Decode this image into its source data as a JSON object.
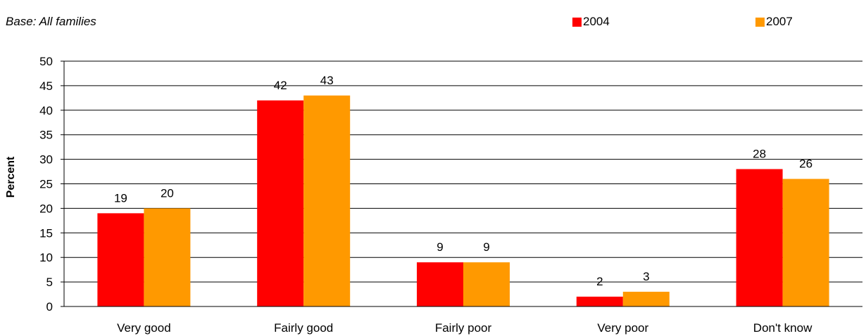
{
  "base_note": "Base: All families",
  "colors": {
    "2004": "#ff0000",
    "2007": "#ff9900"
  },
  "chart_data": {
    "type": "bar",
    "categories": [
      "Very good",
      "Fairly good",
      "Fairly poor",
      "Very poor",
      "Don't know"
    ],
    "series": [
      {
        "name": "2004",
        "values": [
          19,
          42,
          9,
          2,
          28
        ]
      },
      {
        "name": "2007",
        "values": [
          20,
          43,
          9,
          3,
          26
        ]
      }
    ],
    "data_labels": [
      [
        "19",
        "42",
        "9",
        "2",
        "28"
      ],
      [
        "20",
        "43",
        "9",
        "3",
        "26"
      ]
    ],
    "ylabel": "Percent",
    "ylim": [
      0,
      50
    ],
    "yticks": [
      0,
      5,
      10,
      15,
      20,
      25,
      30,
      35,
      40,
      45,
      50
    ],
    "grid": true,
    "legend": "top-right"
  }
}
